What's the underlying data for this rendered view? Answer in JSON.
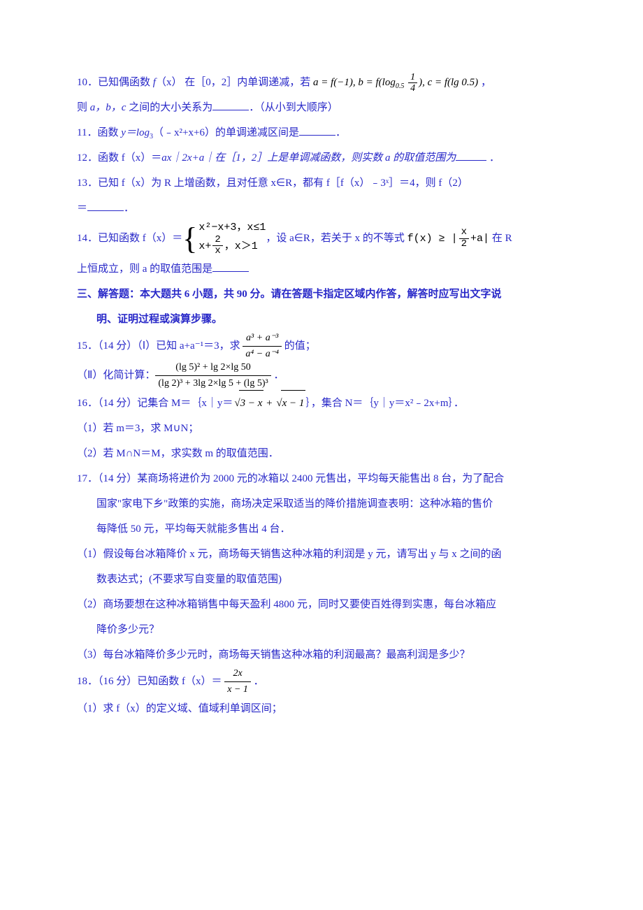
{
  "colors": {
    "text": "#2828c8",
    "math_black": "#000000",
    "background": "#ffffff"
  },
  "font": {
    "body_family": "SimSun",
    "math_family": "Times New Roman",
    "size_pt": 11
  },
  "q10": {
    "pre": "10．已知偶函数 ",
    "f": "f",
    "x": "（x）",
    "mid1": " 在［0，2］内单调递减，若 ",
    "eq": "a = f(−1), b = f(log",
    "sub05": "0.5",
    "frac_n": "1",
    "frac_d": "4",
    "eq2": "), c = f(lg 0.5)",
    "tail": " ，",
    "line2_pre": "则 ",
    "vars": "a，b，c",
    "line2_mid": " 之间的大小关系为",
    "line2_post": "．（从小到大顺序）"
  },
  "q11": {
    "pre": "11．函数 ",
    "expr": "y＝log",
    "sub3": "3",
    "body": "（﹣x²+x+6）的单调递减区间是",
    "post": "．"
  },
  "q12": {
    "pre": "12．函数 f（x）＝",
    "mid": "ax｜2x+a｜在［1，2］上是单调减函数，则实数 a 的取值范围为",
    "post": "  ．"
  },
  "q13": {
    "l1": "13．已知 f（x）为 R 上增函数，且对任意 x∈R，都有 f［f（x）﹣3ˣ］＝4，则 f（2）",
    "l2": "＝",
    "post": "．"
  },
  "q14": {
    "pre": "14．已知函数 f（x）＝",
    "case1": "x²−x+3，x≤1",
    "case2a": "x+",
    "case2_frac_n": "2",
    "case2_frac_d": "x",
    "case2b": "，x＞1",
    "mid": "，设 a∈R，若关于 x 的不等式 ",
    "ineq_l": "f(x) ≥ |",
    "frac_n": "x",
    "frac_d": "2",
    "ineq_r": "+a|",
    "mid2": " 在 R",
    "l2": "上恒成立，则 a 的取值范围是"
  },
  "section3": {
    "l1": "三、解答题：本大题共 6 小题，共 90 分。请在答题卡指定区域内作答，解答时应写出文字说",
    "l2": "明、证明过程或演算步骤。"
  },
  "q15": {
    "pre": "15．（14 分）（Ⅰ）已知 a+a⁻¹＝3，求 ",
    "frac_n": "a³ + a⁻³",
    "frac_d": "a⁴ − a⁻⁴",
    "post": " 的值；",
    "part2_pre": "（Ⅱ）化简计算：",
    "bf_n": "(lg 5)² + lg 2×lg 50",
    "bf_d": "(lg 2)³ + 3lg 2×lg 5 + (lg 5)³",
    "part2_post": " ．"
  },
  "q16": {
    "pre": "16．（14 分）记集合 M＝｛x｜y＝",
    "r1": "3 − x",
    "plus": " + ",
    "r2": "x − 1",
    "post": "｝，集合 N＝｛y｜y＝x²﹣2x+m｝．",
    "p1": "（1）若 m＝3，求 M∪N；",
    "p2": "（2）若 M∩N＝M，求实数 m 的取值范围．"
  },
  "q17": {
    "l1": "17．（14 分）某商场将进价为 2000 元的冰箱以 2400 元售出，平均每天能售出 8 台，为了配合",
    "l2": "国家\"家电下乡\"政策的实施，商场决定采取适当的降价措施调查表明：这种冰箱的售价",
    "l3": "每降低 50 元，平均每天就能多售出 4 台．",
    "p1a": "（1）假设每台冰箱降价 x 元，商场每天销售这种冰箱的利润是 y 元，请写出 y 与 x 之间的函",
    "p1b": "数表达式；(不要求写自变量的取值范围)",
    "p2a": "（2）商场要想在这种冰箱销售中每天盈利 4800 元，同时又要使百姓得到实惠，每台冰箱应",
    "p2b": "降价多少元？",
    "p3": "（3）每台冰箱降价多少元时，商场每天销售这种冰箱的利润最高？最高利润是多少？"
  },
  "q18": {
    "pre": "18．（16 分）已知函数 f（x）＝ ",
    "frac_n": "2x",
    "frac_d": "x − 1",
    "post": " ．",
    "p1": "（1）求 f（x）的定义域、值域利单调区间；"
  }
}
